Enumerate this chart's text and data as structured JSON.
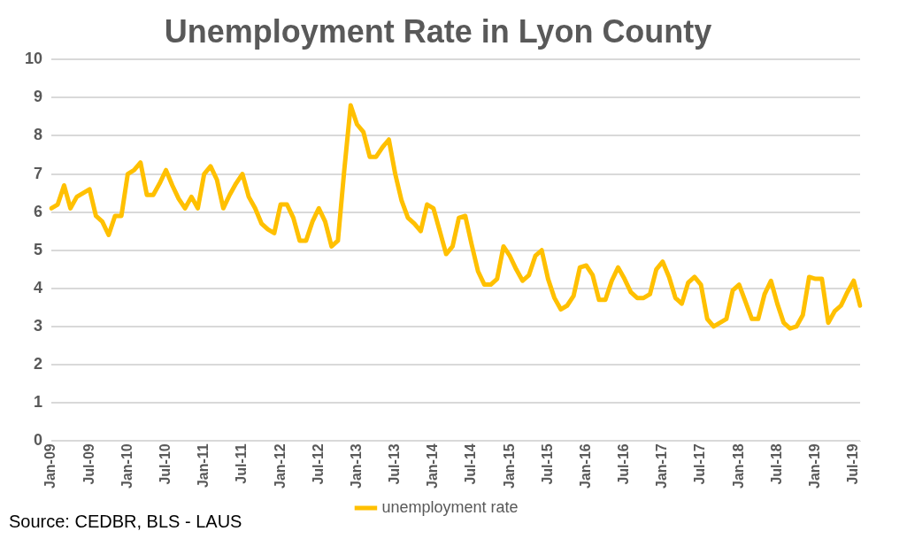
{
  "chart_data": {
    "type": "line",
    "title": "Unemployment Rate in Lyon County",
    "categories": [
      "Jan-09",
      null,
      null,
      null,
      null,
      null,
      "Jul-09",
      null,
      null,
      null,
      null,
      null,
      "Jan-10",
      null,
      null,
      null,
      null,
      null,
      "Jul-10",
      null,
      null,
      null,
      null,
      null,
      "Jan-11",
      null,
      null,
      null,
      null,
      null,
      "Jul-11",
      null,
      null,
      null,
      null,
      null,
      "Jan-12",
      null,
      null,
      null,
      null,
      null,
      "Jul-12",
      null,
      null,
      null,
      null,
      null,
      "Jan-13",
      null,
      null,
      null,
      null,
      null,
      "Jul-13",
      null,
      null,
      null,
      null,
      null,
      "Jan-14",
      null,
      null,
      null,
      null,
      null,
      "Jul-14",
      null,
      null,
      null,
      null,
      null,
      "Jan-15",
      null,
      null,
      null,
      null,
      null,
      "Jul-15",
      null,
      null,
      null,
      null,
      null,
      "Jan-16",
      null,
      null,
      null,
      null,
      null,
      "Jul-16",
      null,
      null,
      null,
      null,
      null,
      "Jan-17",
      null,
      null,
      null,
      null,
      null,
      "Jul-17",
      null,
      null,
      null,
      null,
      null,
      "Jan-18",
      null,
      null,
      null,
      null,
      null,
      "Jul-18",
      null,
      null,
      null,
      null,
      null,
      "Jan-19",
      null,
      null,
      null,
      null,
      null,
      "Jul-19",
      null
    ],
    "series": [
      {
        "name": "unemployment rate",
        "color": "#ffc000",
        "values": [
          6.1,
          6.2,
          6.7,
          6.1,
          6.4,
          6.5,
          6.6,
          5.9,
          5.75,
          5.4,
          5.9,
          5.9,
          7.0,
          7.1,
          7.3,
          6.45,
          6.45,
          6.75,
          7.1,
          6.7,
          6.35,
          6.1,
          6.4,
          6.1,
          7.0,
          7.2,
          6.85,
          6.1,
          6.45,
          6.75,
          7.0,
          6.4,
          6.1,
          5.7,
          5.55,
          5.45,
          6.2,
          6.2,
          5.85,
          5.25,
          5.25,
          5.75,
          6.1,
          5.75,
          5.1,
          5.25,
          7.1,
          8.8,
          8.3,
          8.1,
          7.45,
          7.45,
          7.7,
          7.9,
          7.0,
          6.3,
          5.85,
          5.7,
          5.5,
          6.2,
          6.1,
          5.5,
          4.9,
          5.1,
          5.85,
          5.9,
          5.15,
          4.45,
          4.1,
          4.1,
          4.25,
          5.1,
          4.85,
          4.5,
          4.2,
          4.35,
          4.85,
          5.0,
          4.25,
          3.75,
          3.45,
          3.55,
          3.8,
          4.55,
          4.6,
          4.35,
          3.7,
          3.7,
          4.2,
          4.55,
          4.25,
          3.9,
          3.75,
          3.75,
          3.85,
          4.5,
          4.7,
          4.3,
          3.75,
          3.6,
          4.15,
          4.3,
          4.1,
          3.2,
          3.0,
          3.1,
          3.2,
          3.95,
          4.1,
          3.65,
          3.2,
          3.2,
          3.85,
          4.2,
          3.6,
          3.1,
          2.95,
          3.0,
          3.3,
          4.3,
          4.25,
          4.25,
          3.1,
          3.4,
          3.55,
          3.9,
          4.2,
          3.55
        ]
      }
    ],
    "ylim": [
      0,
      10
    ],
    "yticks": [
      0,
      1,
      2,
      3,
      4,
      5,
      6,
      7,
      8,
      9,
      10
    ],
    "grid": "y",
    "legend": "bottom",
    "marker": "none",
    "line_style": "solid",
    "annotations": [
      "Source: CEDBR, BLS - LAUS"
    ]
  }
}
